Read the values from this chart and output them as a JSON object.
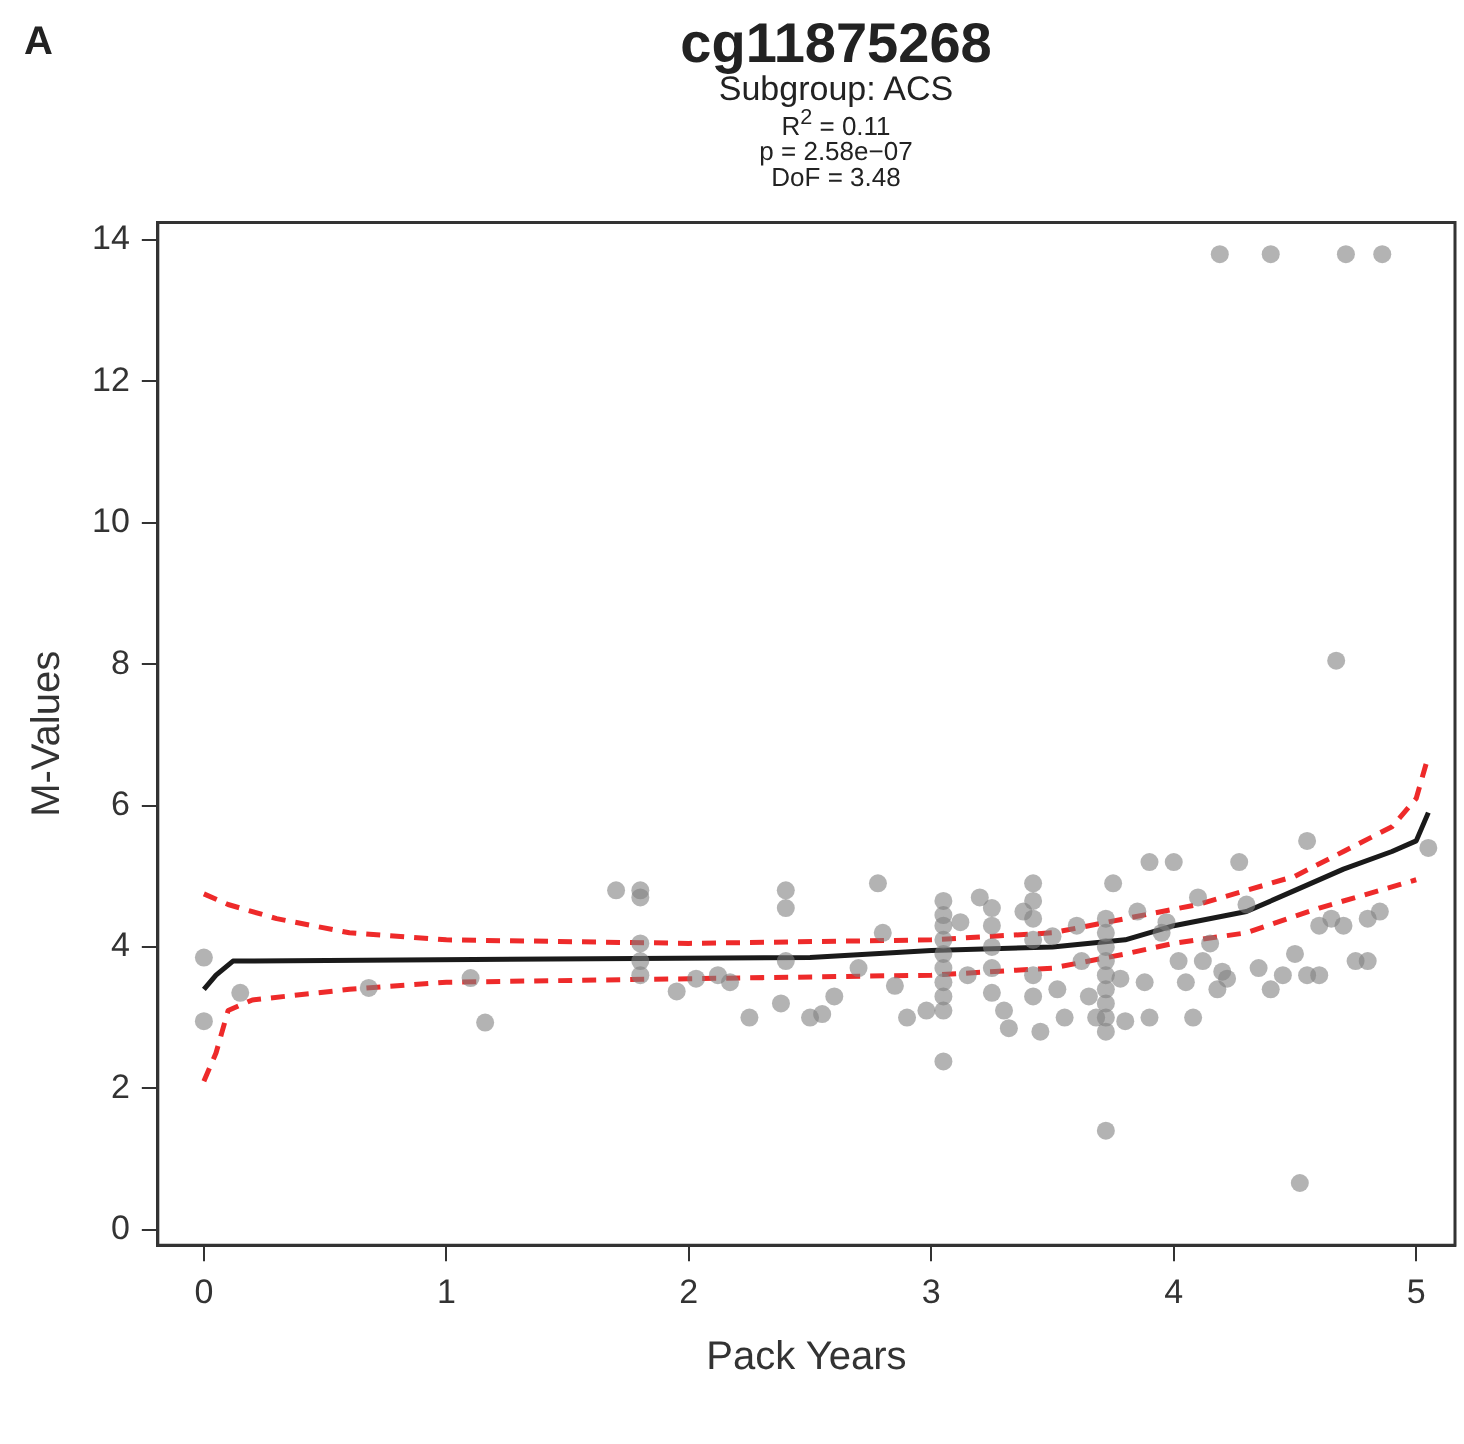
{
  "chart_data": {
    "type": "scatter",
    "title": "cg11875268",
    "subtitle": "Subgroup: ACS",
    "annotations": [
      "A",
      "R$^{2}$ = 0.11",
      "p = 2.58e−07",
      "DoF = 3.48"
    ],
    "xlabel": "Pack Years",
    "ylabel": "M-Values",
    "xlim": [
      -0.19,
      5.16
    ],
    "ylim": [
      -0.22,
      14.25
    ],
    "xticks": [
      0,
      1,
      2,
      3,
      4,
      5
    ],
    "yticks": [
      0,
      2,
      4,
      6,
      8,
      10,
      12,
      14
    ],
    "grid": false,
    "legend": false,
    "series": [
      {
        "color": "#808080",
        "marker": "circle",
        "x": [
          0,
          0,
          0.15,
          0.68,
          1.1,
          1.16,
          1.7,
          1.8,
          1.8,
          1.8,
          1.8,
          1.8,
          1.95,
          2.03,
          2.12,
          2.17,
          2.25,
          2.38,
          2.4,
          2.4,
          2.4,
          2.5,
          2.55,
          2.6,
          2.7,
          2.78,
          2.8,
          2.85,
          2.9,
          2.98,
          3.05,
          3.05,
          3.05,
          3.05,
          3.05,
          3.05,
          3.05,
          3.05,
          3.05,
          3.05,
          3.12,
          3.15,
          3.2,
          3.25,
          3.25,
          3.25,
          3.25,
          3.25,
          3.3,
          3.32,
          3.38,
          3.42,
          3.42,
          3.42,
          3.42,
          3.42,
          3.42,
          3.45,
          3.5,
          3.52,
          3.55,
          3.6,
          3.62,
          3.65,
          3.68,
          3.72,
          3.72,
          3.72,
          3.72,
          3.72,
          3.72,
          3.72,
          3.72,
          3.72,
          3.75,
          3.78,
          3.8,
          3.85,
          3.88,
          3.9,
          3.9,
          3.95,
          3.97,
          4.0,
          4.02,
          4.05,
          4.08,
          4.1,
          4.12,
          4.15,
          4.18,
          4.2,
          4.22,
          4.27,
          4.3,
          4.35,
          4.4,
          4.45,
          4.5,
          4.55,
          4.55,
          4.6,
          4.6,
          4.65,
          4.7,
          4.75,
          4.8,
          4.8,
          4.85,
          5.05,
          4.19,
          4.4,
          4.71,
          4.86,
          4.67,
          4.52,
          3.72
        ],
        "values": [
          3.85,
          2.95,
          3.35,
          3.42,
          3.56,
          2.93,
          4.8,
          4.8,
          4.7,
          4.05,
          3.8,
          3.6,
          3.37,
          3.55,
          3.6,
          3.5,
          3.0,
          3.2,
          4.8,
          4.55,
          3.8,
          3.0,
          3.05,
          3.3,
          3.7,
          4.9,
          4.2,
          3.45,
          3.0,
          3.1,
          4.65,
          4.45,
          4.3,
          4.1,
          3.9,
          3.7,
          3.5,
          3.3,
          3.1,
          2.38,
          4.35,
          3.6,
          4.7,
          4.55,
          4.3,
          4.0,
          3.7,
          3.35,
          3.1,
          2.85,
          4.5,
          4.9,
          4.65,
          4.4,
          4.1,
          3.6,
          3.3,
          2.8,
          4.15,
          3.4,
          3.0,
          4.3,
          3.8,
          3.3,
          3.0,
          4.4,
          4.2,
          4.0,
          3.8,
          3.6,
          3.4,
          3.2,
          3.0,
          1.4,
          4.9,
          3.55,
          2.95,
          4.5,
          3.5,
          5.2,
          3.0,
          4.2,
          4.35,
          5.2,
          3.8,
          3.5,
          3.0,
          4.7,
          3.8,
          4.05,
          3.4,
          3.65,
          3.55,
          5.2,
          4.6,
          3.7,
          3.4,
          3.6,
          3.9,
          5.5,
          3.6,
          4.3,
          3.6,
          4.4,
          4.3,
          3.8,
          4.4,
          3.8,
          4.5,
          5.4,
          13.8,
          13.8,
          13.8,
          13.8,
          8.05,
          0.66,
          2.8
        ]
      },
      {
        "type": "line",
        "color": "#1a1a1a",
        "line_style": "solid",
        "marker": "none",
        "x": [
          0,
          0.05,
          0.12,
          2.5,
          3.0,
          3.5,
          3.8,
          4.0,
          4.3,
          4.5,
          4.7,
          4.9,
          5.0,
          5.05
        ],
        "values": [
          3.4,
          3.6,
          3.8,
          3.85,
          3.95,
          4.0,
          4.1,
          4.3,
          4.5,
          4.8,
          5.1,
          5.35,
          5.5,
          5.9
        ]
      },
      {
        "type": "line",
        "color": "#ee2a2a",
        "line_style": "dashed",
        "marker": "none",
        "x": [
          0,
          0.1,
          0.3,
          0.6,
          1.0,
          2.0,
          3.0,
          3.5,
          3.8,
          4.1,
          4.3,
          4.5,
          4.7,
          4.9,
          5.0,
          5.05
        ],
        "values": [
          4.75,
          4.6,
          4.4,
          4.2,
          4.1,
          4.05,
          4.1,
          4.2,
          4.4,
          4.6,
          4.8,
          5.0,
          5.35,
          5.7,
          6.1,
          6.7
        ]
      },
      {
        "type": "line",
        "color": "#ee2a2a",
        "line_style": "dashed",
        "marker": "none",
        "x": [
          0,
          0.05,
          0.1,
          0.2,
          0.6,
          1.0,
          2.0,
          3.0,
          3.5,
          3.8,
          4.0,
          4.3,
          4.6,
          5.0
        ],
        "values": [
          2.1,
          2.5,
          3.1,
          3.25,
          3.4,
          3.5,
          3.55,
          3.6,
          3.7,
          3.9,
          4.05,
          4.2,
          4.55,
          4.95
        ]
      }
    ]
  }
}
